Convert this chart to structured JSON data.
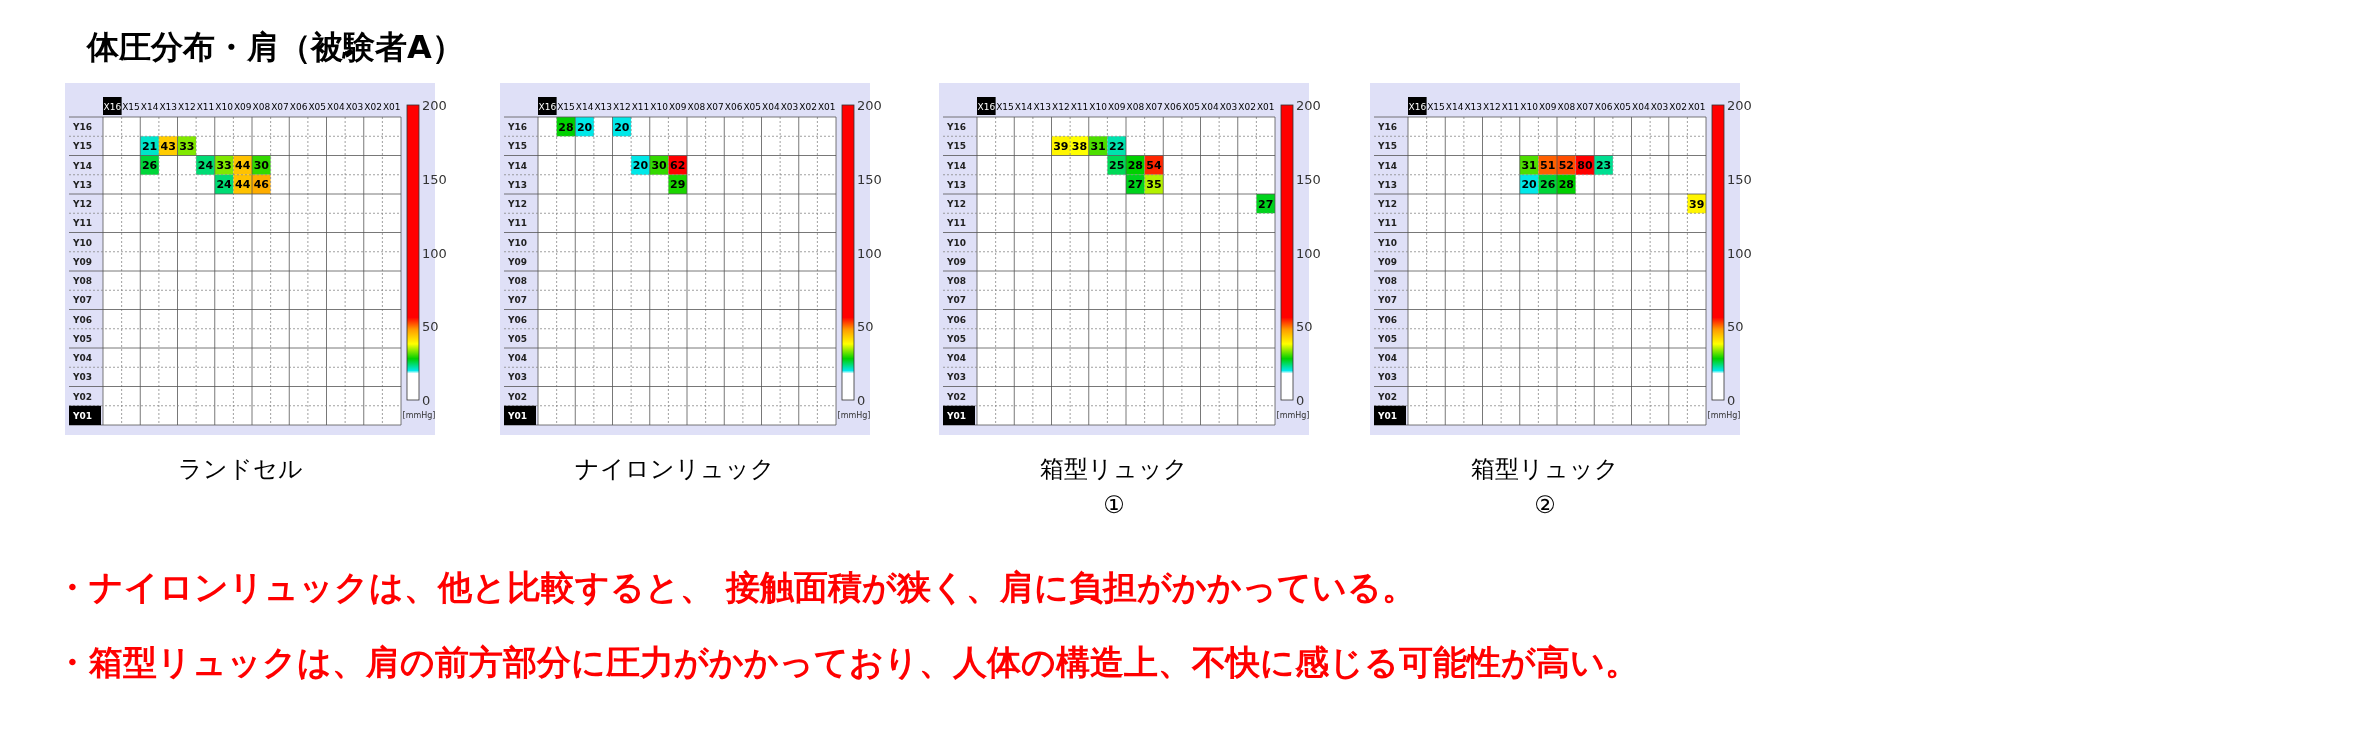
{
  "chart_data": [
    {
      "type": "heatmap",
      "title": "ランドセル",
      "categories": [
        "X16",
        "X15",
        "X14",
        "X13",
        "X12",
        "X11",
        "X10",
        "X09",
        "X08",
        "X07",
        "X06",
        "X05",
        "X04",
        "X03",
        "X02",
        "X01"
      ],
      "y_categories": [
        "Y16",
        "Y15",
        "Y14",
        "Y13",
        "Y12",
        "Y11",
        "Y10",
        "Y09",
        "Y08",
        "Y07",
        "Y06",
        "Y05",
        "Y04",
        "Y03",
        "Y02",
        "Y01"
      ],
      "cells": [
        [
          null,
          null,
          null,
          null,
          null,
          null,
          null,
          null,
          null,
          null,
          null,
          null,
          null,
          null,
          null,
          null
        ],
        [
          null,
          null,
          21,
          43,
          33,
          null,
          null,
          null,
          null,
          null,
          null,
          null,
          null,
          null,
          null,
          null
        ],
        [
          null,
          null,
          26,
          null,
          null,
          24,
          33,
          44,
          30,
          null,
          null,
          null,
          null,
          null,
          null,
          null
        ],
        [
          null,
          null,
          null,
          null,
          null,
          null,
          24,
          44,
          46,
          null,
          null,
          null,
          null,
          null,
          null,
          null
        ],
        [
          null,
          null,
          null,
          null,
          null,
          null,
          null,
          null,
          null,
          null,
          null,
          null,
          null,
          null,
          null,
          null
        ],
        [
          null,
          null,
          null,
          null,
          null,
          null,
          null,
          null,
          null,
          null,
          null,
          null,
          null,
          null,
          null,
          null
        ],
        [
          null,
          null,
          null,
          null,
          null,
          null,
          null,
          null,
          null,
          null,
          null,
          null,
          null,
          null,
          null,
          null
        ],
        [
          null,
          null,
          null,
          null,
          null,
          null,
          null,
          null,
          null,
          null,
          null,
          null,
          null,
          null,
          null,
          null
        ],
        [
          null,
          null,
          null,
          null,
          null,
          null,
          null,
          null,
          null,
          null,
          null,
          null,
          null,
          null,
          null,
          null
        ],
        [
          null,
          null,
          null,
          null,
          null,
          null,
          null,
          null,
          null,
          null,
          null,
          null,
          null,
          null,
          null,
          null
        ],
        [
          null,
          null,
          null,
          null,
          null,
          null,
          null,
          null,
          null,
          null,
          null,
          null,
          null,
          null,
          null,
          null
        ],
        [
          null,
          null,
          null,
          null,
          null,
          null,
          null,
          null,
          null,
          null,
          null,
          null,
          null,
          null,
          null,
          null
        ],
        [
          null,
          null,
          null,
          null,
          null,
          null,
          null,
          null,
          null,
          null,
          null,
          null,
          null,
          null,
          null,
          null
        ],
        [
          null,
          null,
          null,
          null,
          null,
          null,
          null,
          null,
          null,
          null,
          null,
          null,
          null,
          null,
          null,
          null
        ],
        [
          null,
          null,
          null,
          null,
          null,
          null,
          null,
          null,
          null,
          null,
          null,
          null,
          null,
          null,
          null,
          null
        ],
        [
          null,
          null,
          null,
          null,
          null,
          null,
          null,
          null,
          null,
          null,
          null,
          null,
          null,
          null,
          null,
          null
        ]
      ],
      "clim": [
        0,
        200
      ],
      "cticks": [
        0,
        50,
        100,
        150,
        200
      ],
      "clabel": "[mmHg]",
      "data_labels": true,
      "grid": true,
      "annotations": [
        "体圧分布・肩（被験者A）",
        "・ナイロンリュックは、他と比較すると、 接触面積が狭く、肩に負担がかかっている。",
        "・箱型リュックは、肩の前方部分に圧力がかかっており、人体の構造上、不快に感じる可能性が高い。"
      ]
    },
    {
      "type": "heatmap",
      "title": "ナイロンリュック",
      "categories": [
        "X16",
        "X15",
        "X14",
        "X13",
        "X12",
        "X11",
        "X10",
        "X09",
        "X08",
        "X07",
        "X06",
        "X05",
        "X04",
        "X03",
        "X02",
        "X01"
      ],
      "y_categories": [
        "Y16",
        "Y15",
        "Y14",
        "Y13",
        "Y12",
        "Y11",
        "Y10",
        "Y09",
        "Y08",
        "Y07",
        "Y06",
        "Y05",
        "Y04",
        "Y03",
        "Y02",
        "Y01"
      ],
      "cells": [
        [
          null,
          28,
          20,
          null,
          20,
          null,
          null,
          null,
          null,
          null,
          null,
          null,
          null,
          null,
          null,
          null
        ],
        [
          null,
          null,
          null,
          null,
          null,
          null,
          null,
          null,
          null,
          null,
          null,
          null,
          null,
          null,
          null,
          null
        ],
        [
          null,
          null,
          null,
          null,
          null,
          20,
          30,
          62,
          null,
          null,
          null,
          null,
          null,
          null,
          null,
          null
        ],
        [
          null,
          null,
          null,
          null,
          null,
          null,
          null,
          29,
          null,
          null,
          null,
          null,
          null,
          null,
          null,
          null
        ],
        [
          null,
          null,
          null,
          null,
          null,
          null,
          null,
          null,
          null,
          null,
          null,
          null,
          null,
          null,
          null,
          null
        ],
        [
          null,
          null,
          null,
          null,
          null,
          null,
          null,
          null,
          null,
          null,
          null,
          null,
          null,
          null,
          null,
          null
        ],
        [
          null,
          null,
          null,
          null,
          null,
          null,
          null,
          null,
          null,
          null,
          null,
          null,
          null,
          null,
          null,
          null
        ],
        [
          null,
          null,
          null,
          null,
          null,
          null,
          null,
          null,
          null,
          null,
          null,
          null,
          null,
          null,
          null,
          null
        ],
        [
          null,
          null,
          null,
          null,
          null,
          null,
          null,
          null,
          null,
          null,
          null,
          null,
          null,
          null,
          null,
          null
        ],
        [
          null,
          null,
          null,
          null,
          null,
          null,
          null,
          null,
          null,
          null,
          null,
          null,
          null,
          null,
          null,
          null
        ],
        [
          null,
          null,
          null,
          null,
          null,
          null,
          null,
          null,
          null,
          null,
          null,
          null,
          null,
          null,
          null,
          null
        ],
        [
          null,
          null,
          null,
          null,
          null,
          null,
          null,
          null,
          null,
          null,
          null,
          null,
          null,
          null,
          null,
          null
        ],
        [
          null,
          null,
          null,
          null,
          null,
          null,
          null,
          null,
          null,
          null,
          null,
          null,
          null,
          null,
          null,
          null
        ],
        [
          null,
          null,
          null,
          null,
          null,
          null,
          null,
          null,
          null,
          null,
          null,
          null,
          null,
          null,
          null,
          null
        ],
        [
          null,
          null,
          null,
          null,
          null,
          null,
          null,
          null,
          null,
          null,
          null,
          null,
          null,
          null,
          null,
          null
        ],
        [
          null,
          null,
          null,
          null,
          null,
          null,
          null,
          null,
          null,
          null,
          null,
          null,
          null,
          null,
          null,
          null
        ]
      ],
      "clim": [
        0,
        200
      ],
      "cticks": [
        0,
        50,
        100,
        150,
        200
      ],
      "clabel": "[mmHg]",
      "data_labels": true,
      "grid": true
    },
    {
      "type": "heatmap",
      "title": "箱型リュック\n①",
      "categories": [
        "X16",
        "X15",
        "X14",
        "X13",
        "X12",
        "X11",
        "X10",
        "X09",
        "X08",
        "X07",
        "X06",
        "X05",
        "X04",
        "X03",
        "X02",
        "X01"
      ],
      "y_categories": [
        "Y16",
        "Y15",
        "Y14",
        "Y13",
        "Y12",
        "Y11",
        "Y10",
        "Y09",
        "Y08",
        "Y07",
        "Y06",
        "Y05",
        "Y04",
        "Y03",
        "Y02",
        "Y01"
      ],
      "cells": [
        [
          null,
          null,
          null,
          null,
          null,
          null,
          null,
          null,
          null,
          null,
          null,
          null,
          null,
          null,
          null,
          null
        ],
        [
          null,
          null,
          null,
          null,
          39,
          38,
          31,
          22,
          null,
          null,
          null,
          null,
          null,
          null,
          null,
          null
        ],
        [
          null,
          null,
          null,
          null,
          null,
          null,
          null,
          25,
          28,
          54,
          null,
          null,
          null,
          null,
          null,
          null
        ],
        [
          null,
          null,
          null,
          null,
          null,
          null,
          null,
          null,
          27,
          35,
          null,
          null,
          null,
          null,
          null,
          null
        ],
        [
          null,
          null,
          null,
          null,
          null,
          null,
          null,
          null,
          null,
          null,
          null,
          null,
          null,
          null,
          null,
          27
        ],
        [
          null,
          null,
          null,
          null,
          null,
          null,
          null,
          null,
          null,
          null,
          null,
          null,
          null,
          null,
          null,
          null
        ],
        [
          null,
          null,
          null,
          null,
          null,
          null,
          null,
          null,
          null,
          null,
          null,
          null,
          null,
          null,
          null,
          null
        ],
        [
          null,
          null,
          null,
          null,
          null,
          null,
          null,
          null,
          null,
          null,
          null,
          null,
          null,
          null,
          null,
          null
        ],
        [
          null,
          null,
          null,
          null,
          null,
          null,
          null,
          null,
          null,
          null,
          null,
          null,
          null,
          null,
          null,
          null
        ],
        [
          null,
          null,
          null,
          null,
          null,
          null,
          null,
          null,
          null,
          null,
          null,
          null,
          null,
          null,
          null,
          null
        ],
        [
          null,
          null,
          null,
          null,
          null,
          null,
          null,
          null,
          null,
          null,
          null,
          null,
          null,
          null,
          null,
          null
        ],
        [
          null,
          null,
          null,
          null,
          null,
          null,
          null,
          null,
          null,
          null,
          null,
          null,
          null,
          null,
          null,
          null
        ],
        [
          null,
          null,
          null,
          null,
          null,
          null,
          null,
          null,
          null,
          null,
          null,
          null,
          null,
          null,
          null,
          null
        ],
        [
          null,
          null,
          null,
          null,
          null,
          null,
          null,
          null,
          null,
          null,
          null,
          null,
          null,
          null,
          null,
          null
        ],
        [
          null,
          null,
          null,
          null,
          null,
          null,
          null,
          null,
          null,
          null,
          null,
          null,
          null,
          null,
          null,
          null
        ],
        [
          null,
          null,
          null,
          null,
          null,
          null,
          null,
          null,
          null,
          null,
          null,
          null,
          null,
          null,
          null,
          null
        ]
      ],
      "clim": [
        0,
        200
      ],
      "cticks": [
        0,
        50,
        100,
        150,
        200
      ],
      "clabel": "[mmHg]",
      "data_labels": true,
      "grid": true
    },
    {
      "type": "heatmap",
      "title": "箱型リュック\n②",
      "categories": [
        "X16",
        "X15",
        "X14",
        "X13",
        "X12",
        "X11",
        "X10",
        "X09",
        "X08",
        "X07",
        "X06",
        "X05",
        "X04",
        "X03",
        "X02",
        "X01"
      ],
      "y_categories": [
        "Y16",
        "Y15",
        "Y14",
        "Y13",
        "Y12",
        "Y11",
        "Y10",
        "Y09",
        "Y08",
        "Y07",
        "Y06",
        "Y05",
        "Y04",
        "Y03",
        "Y02",
        "Y01"
      ],
      "cells": [
        [
          null,
          null,
          null,
          null,
          null,
          null,
          null,
          null,
          null,
          null,
          null,
          null,
          null,
          null,
          null,
          null
        ],
        [
          null,
          null,
          null,
          null,
          null,
          null,
          null,
          null,
          null,
          null,
          null,
          null,
          null,
          null,
          null,
          null
        ],
        [
          null,
          null,
          null,
          null,
          null,
          null,
          31,
          51,
          52,
          80,
          23,
          null,
          null,
          null,
          null,
          null
        ],
        [
          null,
          null,
          null,
          null,
          null,
          null,
          20,
          26,
          28,
          null,
          null,
          null,
          null,
          null,
          null,
          null
        ],
        [
          null,
          null,
          null,
          null,
          null,
          null,
          null,
          null,
          null,
          null,
          null,
          null,
          null,
          null,
          null,
          39
        ],
        [
          null,
          null,
          null,
          null,
          null,
          null,
          null,
          null,
          null,
          null,
          null,
          null,
          null,
          null,
          null,
          null
        ],
        [
          null,
          null,
          null,
          null,
          null,
          null,
          null,
          null,
          null,
          null,
          null,
          null,
          null,
          null,
          null,
          null
        ],
        [
          null,
          null,
          null,
          null,
          null,
          null,
          null,
          null,
          null,
          null,
          null,
          null,
          null,
          null,
          null,
          null
        ],
        [
          null,
          null,
          null,
          null,
          null,
          null,
          null,
          null,
          null,
          null,
          null,
          null,
          null,
          null,
          null,
          null
        ],
        [
          null,
          null,
          null,
          null,
          null,
          null,
          null,
          null,
          null,
          null,
          null,
          null,
          null,
          null,
          null,
          null
        ],
        [
          null,
          null,
          null,
          null,
          null,
          null,
          null,
          null,
          null,
          null,
          null,
          null,
          null,
          null,
          null,
          null
        ],
        [
          null,
          null,
          null,
          null,
          null,
          null,
          null,
          null,
          null,
          null,
          null,
          null,
          null,
          null,
          null,
          null
        ],
        [
          null,
          null,
          null,
          null,
          null,
          null,
          null,
          null,
          null,
          null,
          null,
          null,
          null,
          null,
          null,
          null
        ],
        [
          null,
          null,
          null,
          null,
          null,
          null,
          null,
          null,
          null,
          null,
          null,
          null,
          null,
          null,
          null,
          null
        ],
        [
          null,
          null,
          null,
          null,
          null,
          null,
          null,
          null,
          null,
          null,
          null,
          null,
          null,
          null,
          null,
          null
        ],
        [
          null,
          null,
          null,
          null,
          null,
          null,
          null,
          null,
          null,
          null,
          null,
          null,
          null,
          null,
          null,
          null
        ]
      ],
      "clim": [
        0,
        200
      ],
      "cticks": [
        0,
        50,
        100,
        150,
        200
      ],
      "clabel": "[mmHg]",
      "data_labels": true,
      "grid": true
    }
  ]
}
